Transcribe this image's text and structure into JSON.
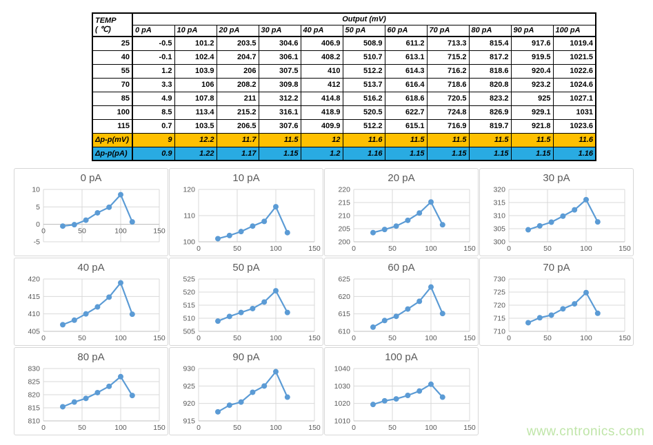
{
  "table": {
    "temp_header_line1": "TEMP",
    "temp_header_line2": "( ℃)",
    "output_header": "Output (mV)",
    "col_headers": [
      "0 pA",
      "10 pA",
      "20 pA",
      "30 pA",
      "40 pA",
      "50 pA",
      "60 pA",
      "70 pA",
      "80 pA",
      "90 pA",
      "100 pA"
    ],
    "rows": [
      {
        "temp": "25",
        "values": [
          "-0.5",
          "101.2",
          "203.5",
          "304.6",
          "406.9",
          "508.9",
          "611.2",
          "713.3",
          "815.4",
          "917.6",
          "1019.4"
        ]
      },
      {
        "temp": "40",
        "values": [
          "-0.1",
          "102.4",
          "204.7",
          "306.1",
          "408.2",
          "510.7",
          "613.1",
          "715.2",
          "817.2",
          "919.5",
          "1021.5"
        ]
      },
      {
        "temp": "55",
        "values": [
          "1.2",
          "103.9",
          "206",
          "307.5",
          "410",
          "512.2",
          "614.3",
          "716.2",
          "818.6",
          "920.4",
          "1022.6"
        ]
      },
      {
        "temp": "70",
        "values": [
          "3.3",
          "106",
          "208.2",
          "309.8",
          "412",
          "513.7",
          "616.4",
          "718.6",
          "820.8",
          "923.2",
          "1024.6"
        ]
      },
      {
        "temp": "85",
        "values": [
          "4.9",
          "107.8",
          "211",
          "312.2",
          "414.8",
          "516.2",
          "618.6",
          "720.5",
          "823.2",
          "925",
          "1027.1"
        ]
      },
      {
        "temp": "100",
        "values": [
          "8.5",
          "113.4",
          "215.2",
          "316.1",
          "418.9",
          "520.5",
          "622.7",
          "724.8",
          "826.9",
          "929.1",
          "1031"
        ]
      },
      {
        "temp": "115",
        "values": [
          "0.7",
          "103.5",
          "206.5",
          "307.6",
          "409.9",
          "512.2",
          "615.1",
          "716.9",
          "819.7",
          "921.8",
          "1023.6"
        ]
      }
    ],
    "delta_mv": {
      "label": "Δp-p(mV)",
      "values": [
        "9",
        "12.2",
        "11.7",
        "11.5",
        "12",
        "11.6",
        "11.5",
        "11.5",
        "11.5",
        "11.5",
        "11.6"
      ]
    },
    "delta_pa": {
      "label": "Δp-p(pA)",
      "values": [
        "0.9",
        "1.22",
        "1.17",
        "1.15",
        "1.2",
        "1.16",
        "1.15",
        "1.15",
        "1.15",
        "1.15",
        "1.16"
      ]
    }
  },
  "colors": {
    "delta_mv_bg": "#FFC000",
    "delta_pa_bg": "#29ABE2",
    "chart_line": "#5B9BD5",
    "grid_line": "#D9D9D9",
    "axis_line": "#BFBFBF",
    "chart_text": "#595959",
    "watermark_green": "#BFE5A8"
  },
  "watermark": {
    "text": "www.cntronics.com"
  },
  "chart_data": [
    {
      "type": "line",
      "title": "0 pA",
      "x": [
        25,
        40,
        55,
        70,
        85,
        100,
        115
      ],
      "values": [
        -0.5,
        -0.1,
        1.2,
        3.3,
        4.9,
        8.5,
        0.7
      ],
      "xlim": [
        0,
        150
      ],
      "xticks": [
        0,
        50,
        100,
        150
      ],
      "ylim": [
        -5,
        10
      ],
      "yticks": [
        -5,
        0,
        5,
        10
      ],
      "grid": true,
      "legend": "none"
    },
    {
      "type": "line",
      "title": "10 pA",
      "x": [
        25,
        40,
        55,
        70,
        85,
        100,
        115
      ],
      "values": [
        101.2,
        102.4,
        103.9,
        106,
        107.8,
        113.4,
        103.5
      ],
      "xlim": [
        0,
        150
      ],
      "xticks": [
        0,
        50,
        100,
        150
      ],
      "ylim": [
        100,
        120
      ],
      "yticks": [
        100,
        110,
        120
      ],
      "grid": true,
      "legend": "none"
    },
    {
      "type": "line",
      "title": "20 pA",
      "x": [
        25,
        40,
        55,
        70,
        85,
        100,
        115
      ],
      "values": [
        203.5,
        204.7,
        206,
        208.2,
        211,
        215.2,
        206.5
      ],
      "xlim": [
        0,
        150
      ],
      "xticks": [
        0,
        50,
        100,
        150
      ],
      "ylim": [
        200,
        220
      ],
      "yticks": [
        200,
        205,
        210,
        215,
        220
      ],
      "grid": true,
      "legend": "none"
    },
    {
      "type": "line",
      "title": "30 pA",
      "x": [
        25,
        40,
        55,
        70,
        85,
        100,
        115
      ],
      "values": [
        304.6,
        306.1,
        307.5,
        309.8,
        312.2,
        316.1,
        307.6
      ],
      "xlim": [
        0,
        150
      ],
      "xticks": [
        0,
        50,
        100,
        150
      ],
      "ylim": [
        300,
        320
      ],
      "yticks": [
        300,
        305,
        310,
        315,
        320
      ],
      "grid": true,
      "legend": "none"
    },
    {
      "type": "line",
      "title": "40 pA",
      "x": [
        25,
        40,
        55,
        70,
        85,
        100,
        115
      ],
      "values": [
        406.9,
        408.2,
        410,
        412,
        414.8,
        418.9,
        409.9
      ],
      "xlim": [
        0,
        150
      ],
      "xticks": [
        0,
        50,
        100,
        150
      ],
      "ylim": [
        405,
        420
      ],
      "yticks": [
        405,
        410,
        415,
        420
      ],
      "grid": true,
      "legend": "none"
    },
    {
      "type": "line",
      "title": "50 pA",
      "x": [
        25,
        40,
        55,
        70,
        85,
        100,
        115
      ],
      "values": [
        508.9,
        510.7,
        512.2,
        513.7,
        516.2,
        520.5,
        512.2
      ],
      "xlim": [
        0,
        150
      ],
      "xticks": [
        0,
        50,
        100,
        150
      ],
      "ylim": [
        505,
        525
      ],
      "yticks": [
        505,
        510,
        515,
        520,
        525
      ],
      "grid": true,
      "legend": "none"
    },
    {
      "type": "line",
      "title": "60 pA",
      "x": [
        25,
        40,
        55,
        70,
        85,
        100,
        115
      ],
      "values": [
        611.2,
        613.1,
        614.3,
        616.4,
        618.6,
        622.7,
        615.1
      ],
      "xlim": [
        0,
        150
      ],
      "xticks": [
        0,
        50,
        100,
        150
      ],
      "ylim": [
        610,
        625
      ],
      "yticks": [
        610,
        615,
        620,
        625
      ],
      "grid": true,
      "legend": "none"
    },
    {
      "type": "line",
      "title": "70 pA",
      "x": [
        25,
        40,
        55,
        70,
        85,
        100,
        115
      ],
      "values": [
        713.3,
        715.2,
        716.2,
        718.6,
        720.5,
        724.8,
        716.9
      ],
      "xlim": [
        0,
        150
      ],
      "xticks": [
        0,
        50,
        100,
        150
      ],
      "ylim": [
        710,
        730
      ],
      "yticks": [
        710,
        715,
        720,
        725,
        730
      ],
      "grid": true,
      "legend": "none"
    },
    {
      "type": "line",
      "title": "80 pA",
      "x": [
        25,
        40,
        55,
        70,
        85,
        100,
        115
      ],
      "values": [
        815.4,
        817.2,
        818.6,
        820.8,
        823.2,
        826.9,
        819.7
      ],
      "xlim": [
        0,
        150
      ],
      "xticks": [
        0,
        50,
        100,
        150
      ],
      "ylim": [
        810,
        830
      ],
      "yticks": [
        810,
        815,
        820,
        825,
        830
      ],
      "grid": true,
      "legend": "none"
    },
    {
      "type": "line",
      "title": "90 pA",
      "x": [
        25,
        40,
        55,
        70,
        85,
        100,
        115
      ],
      "values": [
        917.6,
        919.5,
        920.4,
        923.2,
        925,
        929.1,
        921.8
      ],
      "xlim": [
        0,
        150
      ],
      "xticks": [
        0,
        50,
        100,
        150
      ],
      "ylim": [
        915,
        930
      ],
      "yticks": [
        915,
        920,
        925,
        930
      ],
      "grid": true,
      "legend": "none"
    },
    {
      "type": "line",
      "title": "100 pA",
      "x": [
        25,
        40,
        55,
        70,
        85,
        100,
        115
      ],
      "values": [
        1019.4,
        1021.5,
        1022.6,
        1024.6,
        1027.1,
        1031,
        1023.6
      ],
      "xlim": [
        0,
        150
      ],
      "xticks": [
        0,
        50,
        100,
        150
      ],
      "ylim": [
        1010,
        1040
      ],
      "yticks": [
        1010,
        1020,
        1030,
        1040
      ],
      "grid": true,
      "legend": "none"
    }
  ]
}
